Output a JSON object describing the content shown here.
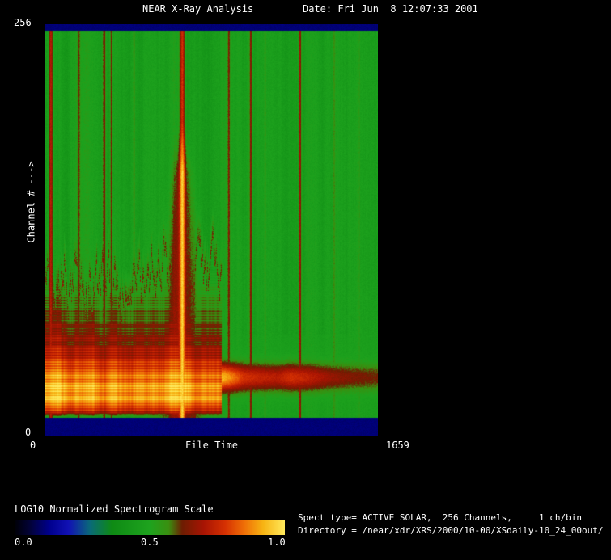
{
  "window": {
    "title": "NEAR X-Ray Analysis",
    "date": "Date: Fri Jun  8 12:07:33 2001",
    "background_color": "#000000",
    "text_color": "#ffffff"
  },
  "y_axis": {
    "max_label": "256",
    "min_label": "0",
    "title": "Channel # --->"
  },
  "x_axis": {
    "min_label": "0",
    "title": "File Time",
    "max_label": "1659"
  },
  "colorbar": {
    "title": "LOG10 Normalized Spectrogram Scale",
    "ticks": [
      "0.0",
      "0.5",
      "1.0"
    ]
  },
  "info": {
    "spect_type": "Spect type= ACTIVE SOLAR,  256 Channels,     1 ch/bin",
    "directory": "Directory = /near/xdr/XRS/2000/10-00/XSdaily-10_24_00out/"
  },
  "chart_data": {
    "type": "heatmap",
    "title": "NEAR X-Ray Analysis",
    "xlabel": "File Time",
    "ylabel": "Channel #",
    "x_range": [
      0,
      1659
    ],
    "y_range": [
      0,
      256
    ],
    "x_ticks": [
      0,
      1659
    ],
    "y_ticks": [
      0,
      256
    ],
    "scale": {
      "label": "LOG10 Normalized Spectrogram Scale",
      "range": [
        0.0,
        1.0
      ],
      "ticks": [
        0.0,
        0.5,
        1.0
      ]
    },
    "colormap": [
      {
        "pos": 0.0,
        "color": "#000005"
      },
      {
        "pos": 0.06,
        "color": "#02023a"
      },
      {
        "pos": 0.13,
        "color": "#00008e"
      },
      {
        "pos": 0.2,
        "color": "#1111b4"
      },
      {
        "pos": 0.28,
        "color": "#0a6a78"
      },
      {
        "pos": 0.36,
        "color": "#0e8a14"
      },
      {
        "pos": 0.5,
        "color": "#1ea31e"
      },
      {
        "pos": 0.57,
        "color": "#3a8f10"
      },
      {
        "pos": 0.62,
        "color": "#6d1d02"
      },
      {
        "pos": 0.7,
        "color": "#a81403"
      },
      {
        "pos": 0.78,
        "color": "#d63102"
      },
      {
        "pos": 0.85,
        "color": "#ef6f07"
      },
      {
        "pos": 0.92,
        "color": "#f7b413"
      },
      {
        "pos": 1.0,
        "color": "#ffe95c"
      }
    ],
    "field": {
      "background_level": 0.465,
      "border_bands": {
        "top_frac": 0.0157,
        "bottom_frac": 0.9549,
        "level": 0.11
      },
      "hot_region": {
        "x_end_frac": 0.534,
        "top_frac": 0.64,
        "profile": [
          [
            0.6,
            0.52
          ],
          [
            0.66,
            0.6
          ],
          [
            0.72,
            0.66
          ],
          [
            0.78,
            0.73
          ],
          [
            0.81,
            0.8
          ],
          [
            0.84,
            0.9
          ],
          [
            0.87,
            0.97
          ],
          [
            0.895,
            1.0
          ],
          [
            0.92,
            0.96
          ],
          [
            0.935,
            0.84
          ],
          [
            0.948,
            0.66
          ],
          [
            0.955,
            0.5
          ]
        ]
      },
      "right_band": {
        "center_frac": 0.858,
        "width_frac": 0.035,
        "segments": [
          [
            0.534,
            0.47
          ],
          [
            0.565,
            0.4
          ],
          [
            0.6,
            0.31
          ],
          [
            0.65,
            0.28
          ],
          [
            0.7,
            0.26
          ],
          [
            0.74,
            0.31
          ],
          [
            0.8,
            0.27
          ],
          [
            0.86,
            0.21
          ],
          [
            0.93,
            0.18
          ],
          [
            1.0,
            0.16
          ]
        ]
      },
      "plume": {
        "x_frac": 0.413,
        "top_frac": 0.24,
        "amplitude": 0.2
      },
      "streaks": [
        {
          "x": 0.018,
          "w": 0.006,
          "a": 0.26
        },
        {
          "x": 0.102,
          "w": 0.004,
          "a": 0.12
        },
        {
          "x": 0.178,
          "w": 0.005,
          "a": 0.22
        },
        {
          "x": 0.2,
          "w": 0.004,
          "a": 0.18
        },
        {
          "x": 0.268,
          "w": 0.0035,
          "a": 0.11
        },
        {
          "x": 0.413,
          "w": 0.008,
          "a": 0.3
        },
        {
          "x": 0.553,
          "w": 0.0035,
          "a": 0.14
        },
        {
          "x": 0.619,
          "w": 0.004,
          "a": 0.2
        },
        {
          "x": 0.662,
          "w": 0.003,
          "a": 0.09
        },
        {
          "x": 0.767,
          "w": 0.004,
          "a": 0.22
        },
        {
          "x": 0.87,
          "w": 0.003,
          "a": 0.09
        },
        {
          "x": 0.944,
          "w": 0.003,
          "a": 0.07
        }
      ]
    }
  }
}
